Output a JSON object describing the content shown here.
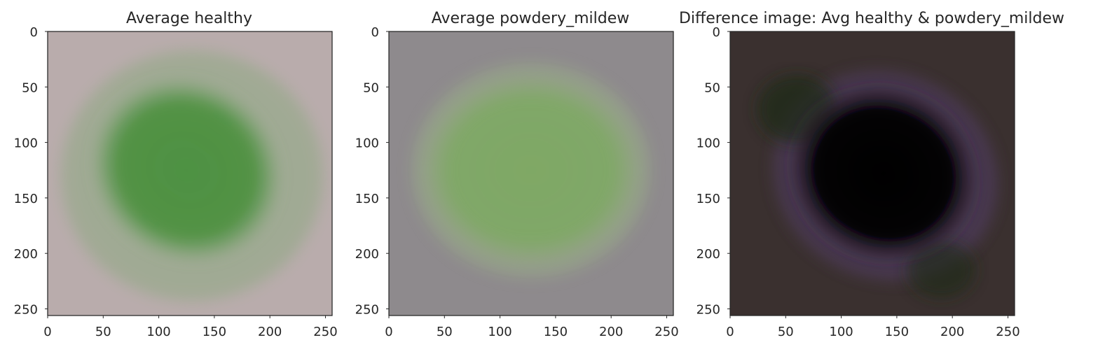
{
  "chart_data": [
    {
      "type": "heatmap",
      "title": "Average healthy",
      "xlim": [
        0,
        256
      ],
      "ylim": [
        256,
        0
      ],
      "xticks": [
        0,
        50,
        100,
        150,
        200,
        250
      ],
      "yticks": [
        0,
        50,
        100,
        150,
        200,
        250
      ],
      "grid": false,
      "colors": {
        "background": "#b9acac",
        "blob": "#4e9142",
        "blob_edge": "#84a878"
      }
    },
    {
      "type": "heatmap",
      "title": "Average powdery_mildew",
      "xlim": [
        0,
        256
      ],
      "ylim": [
        256,
        0
      ],
      "xticks": [
        0,
        50,
        100,
        150,
        200,
        250
      ],
      "yticks": [
        0,
        50,
        100,
        150,
        200,
        250
      ],
      "grid": false,
      "colors": {
        "background": "#8e8a8d",
        "blob": "#7fa866",
        "blob_edge": "#9aae88"
      }
    },
    {
      "type": "heatmap",
      "title": "Difference image: Avg healthy & powdery_mildew",
      "xlim": [
        0,
        256
      ],
      "ylim": [
        256,
        0
      ],
      "xticks": [
        0,
        50,
        100,
        150,
        200,
        250
      ],
      "yticks": [
        0,
        50,
        100,
        150,
        200,
        250
      ],
      "grid": false,
      "colors": {
        "background": "#3a302f",
        "blob": "#050406",
        "blob_edge": "#4d3a5a",
        "accent": "#1c2a12"
      }
    }
  ]
}
